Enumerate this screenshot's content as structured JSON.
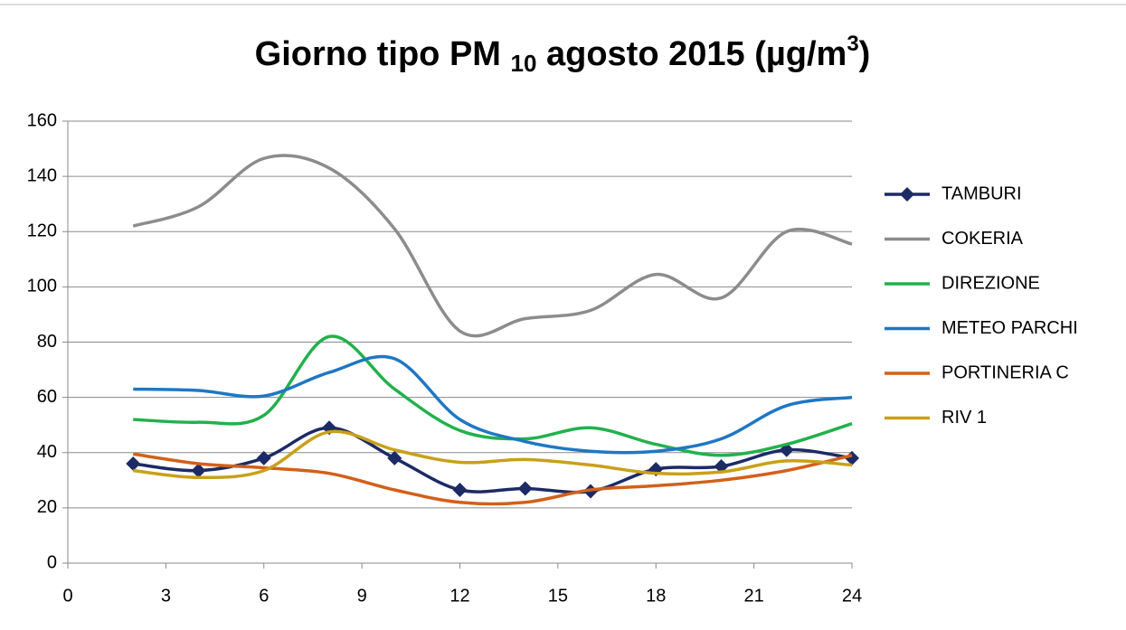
{
  "chart_data": {
    "type": "line",
    "title": [
      "Giorno tipo PM ",
      "10",
      " agosto 2015 (µg/m",
      "3",
      ")"
    ],
    "x": [
      2,
      4,
      6,
      8,
      10,
      12,
      14,
      16,
      18,
      20,
      22,
      24
    ],
    "xlim": [
      0,
      24
    ],
    "xticks": [
      0,
      3,
      6,
      9,
      12,
      15,
      18,
      21,
      24
    ],
    "ylim": [
      0,
      160
    ],
    "yticks": [
      0,
      20,
      40,
      60,
      80,
      100,
      120,
      140,
      160
    ],
    "grid": true,
    "smooth": true,
    "legend": "right",
    "series": [
      {
        "name": "TAMBURI",
        "color": "#1c2a66",
        "marker": "diamond",
        "values": [
          36,
          33.5,
          38,
          49,
          38,
          26.5,
          27,
          26,
          34,
          35,
          41,
          38
        ]
      },
      {
        "name": "COKERIA",
        "color": "#8c8c8c",
        "values": [
          122,
          129,
          146.5,
          143,
          121,
          84,
          88.5,
          91.5,
          104.5,
          96,
          120,
          115.5
        ]
      },
      {
        "name": "DIREZIONE",
        "color": "#22b14c",
        "values": [
          52,
          51,
          53.5,
          82,
          63,
          48,
          45,
          49,
          43,
          39,
          43,
          50.5
        ]
      },
      {
        "name": "METEO PARCHI",
        "color": "#1f77c4",
        "values": [
          63,
          62.5,
          60.5,
          69,
          74,
          52,
          44,
          40.5,
          40.5,
          45,
          57,
          60
        ]
      },
      {
        "name": "PORTINERIA C",
        "color": "#d2601a",
        "values": [
          39.5,
          36,
          34.5,
          32.5,
          26.5,
          22,
          22,
          26.5,
          28,
          30,
          33.5,
          39
        ]
      },
      {
        "name": "RIV 1",
        "color": "#c9a01a",
        "values": [
          33.5,
          31,
          33.5,
          47.5,
          41,
          36.5,
          37.5,
          35.5,
          32.5,
          33,
          37,
          35.5
        ]
      }
    ]
  }
}
